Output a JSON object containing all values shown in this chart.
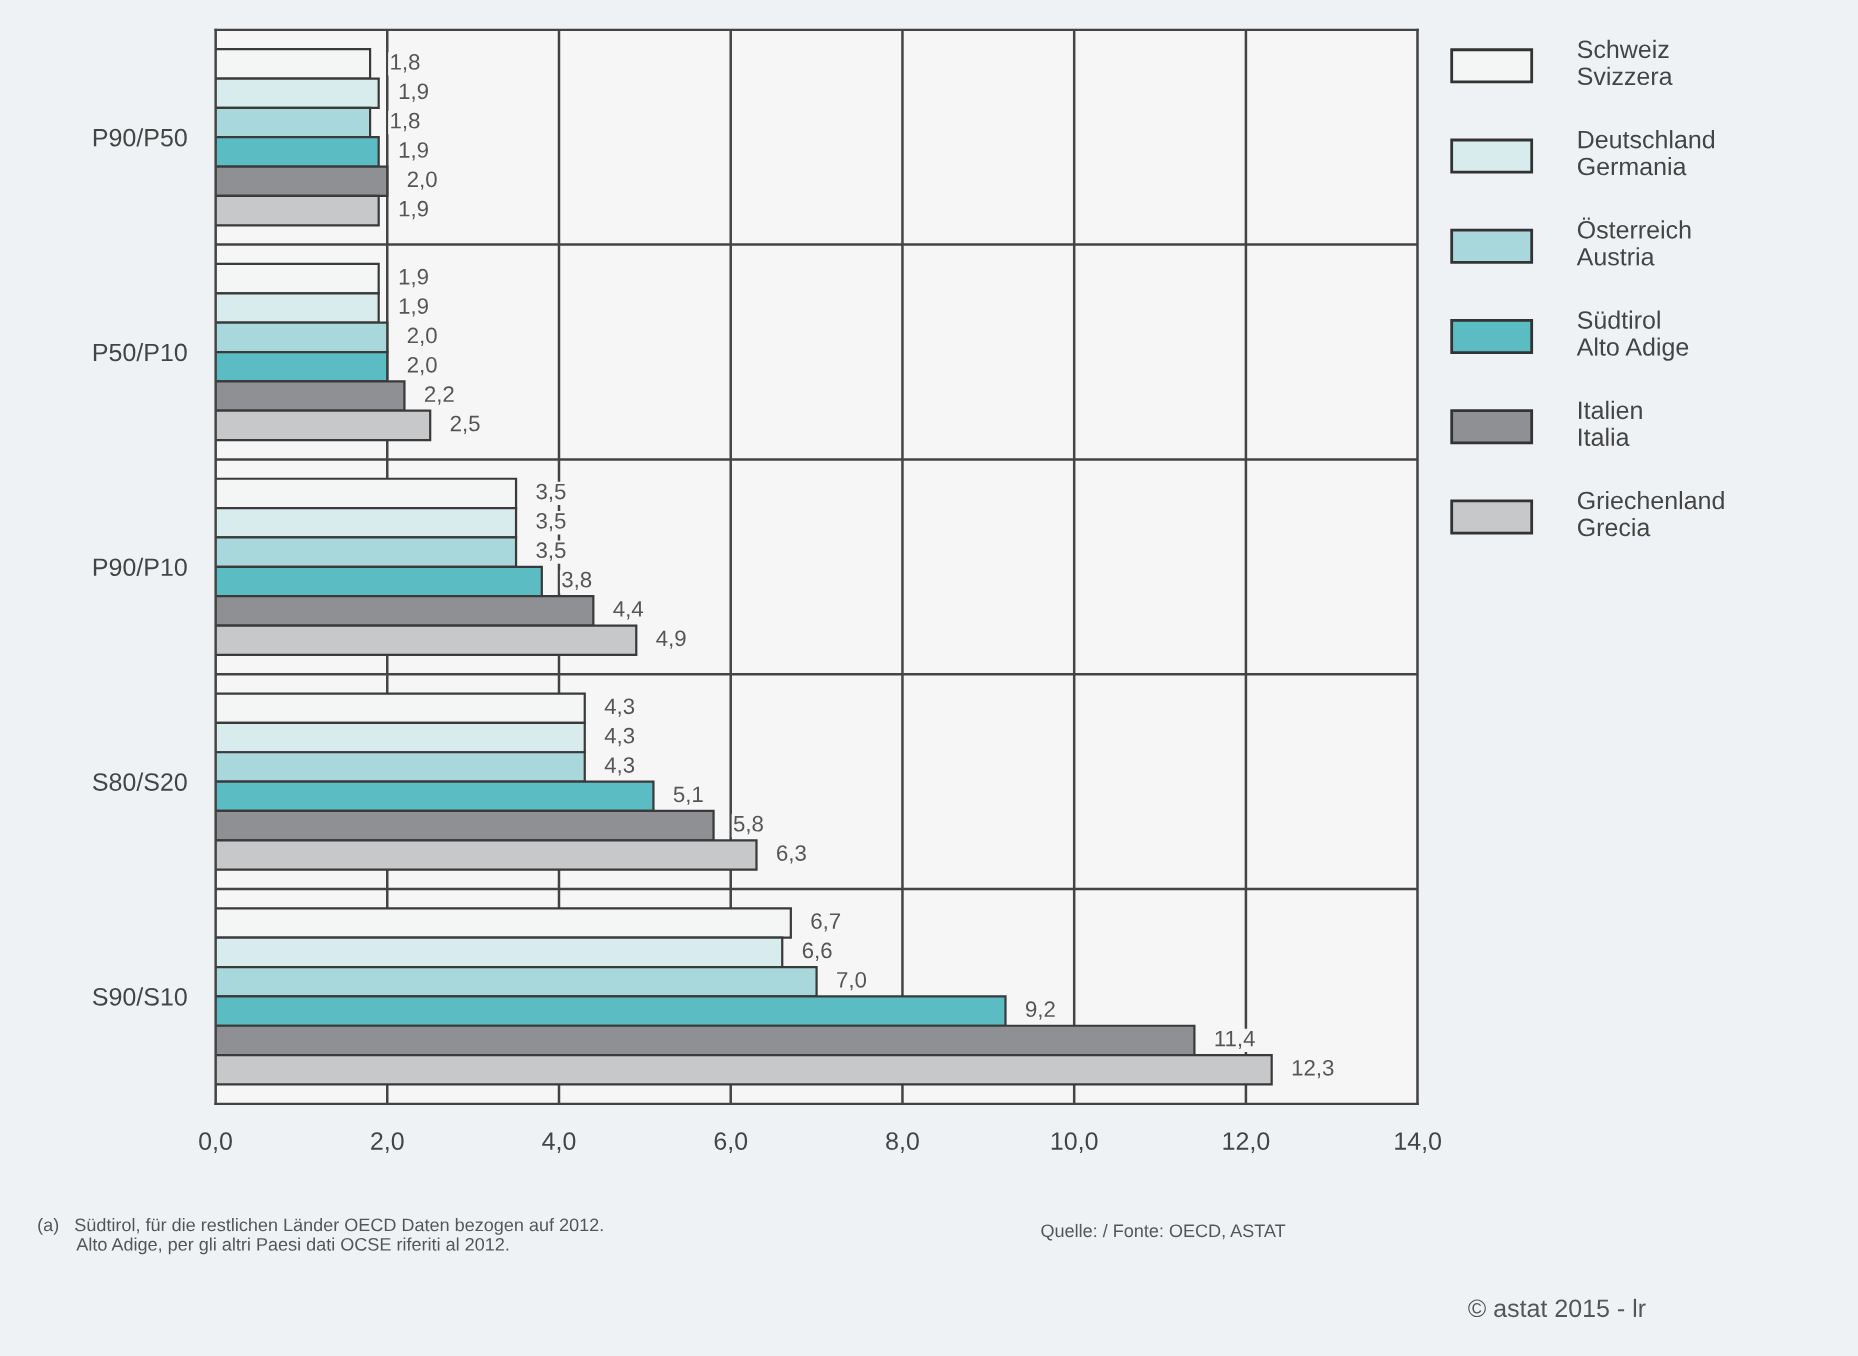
{
  "chart_data": {
    "type": "bar",
    "orientation": "horizontal",
    "categories": [
      "P90/P50",
      "P50/P10",
      "P90/P10",
      "S80/S20",
      "S90/S10"
    ],
    "series": [
      {
        "name": "Schweiz\nSvizzera",
        "color": "#f4f6f6",
        "values": [
          1.8,
          1.9,
          3.5,
          4.3,
          6.7
        ],
        "value_labels": [
          "1,8",
          "1,9",
          "3,5",
          "4,3",
          "6,7"
        ]
      },
      {
        "name": "Deutschland\nGermania",
        "color": "#d8ecee",
        "values": [
          1.9,
          1.9,
          3.5,
          4.3,
          6.6
        ],
        "value_labels": [
          "1,9",
          "1,9",
          "3,5",
          "4,3",
          "6,6"
        ]
      },
      {
        "name": "Österreich\nAustria",
        "color": "#a9d8dc",
        "values": [
          1.8,
          2.0,
          3.5,
          4.3,
          7.0
        ],
        "value_labels": [
          "1,8",
          "2,0",
          "3,5",
          "4,3",
          "7,0"
        ]
      },
      {
        "name": "Südtirol\nAlto Adige",
        "color": "#5bbcc4",
        "values": [
          1.9,
          2.0,
          3.8,
          5.1,
          9.2
        ],
        "value_labels": [
          "1,9",
          "2,0",
          "3,8",
          "5,1",
          "9,2"
        ]
      },
      {
        "name": "Italien\nItalia",
        "color": "#8e9093",
        "values": [
          2.0,
          2.2,
          4.4,
          5.8,
          11.4
        ],
        "value_labels": [
          "2,0",
          "2,2",
          "4,4",
          "5,8",
          "11,4"
        ]
      },
      {
        "name": "Griechenland\nGrecia",
        "color": "#c6c8ca",
        "values": [
          1.9,
          2.5,
          4.9,
          6.3,
          12.3
        ],
        "value_labels": [
          "1,9",
          "2,5",
          "4,9",
          "6,3",
          "12,3"
        ]
      }
    ],
    "xlim": [
      0,
      14
    ],
    "xticks": [
      {
        "value": 0,
        "label": "0,0"
      },
      {
        "value": 2,
        "label": "2,0"
      },
      {
        "value": 4,
        "label": "4,0"
      },
      {
        "value": 6,
        "label": "6,0"
      },
      {
        "value": 8,
        "label": "8,0"
      },
      {
        "value": 10,
        "label": "10,0"
      },
      {
        "value": 12,
        "label": "12,0"
      },
      {
        "value": 14,
        "label": "14,0"
      }
    ],
    "grid": true,
    "legend": "right",
    "annotations": [
      "(a)   Südtirol, für die restlichen Länder OECD Daten bezogen auf 2012.\n        Alto Adige, per gli altri Paesi dati OCSE riferiti al 2012.",
      "Quelle: / Fonte: OECD, ASTAT",
      "© astat 2015 - lr"
    ]
  }
}
